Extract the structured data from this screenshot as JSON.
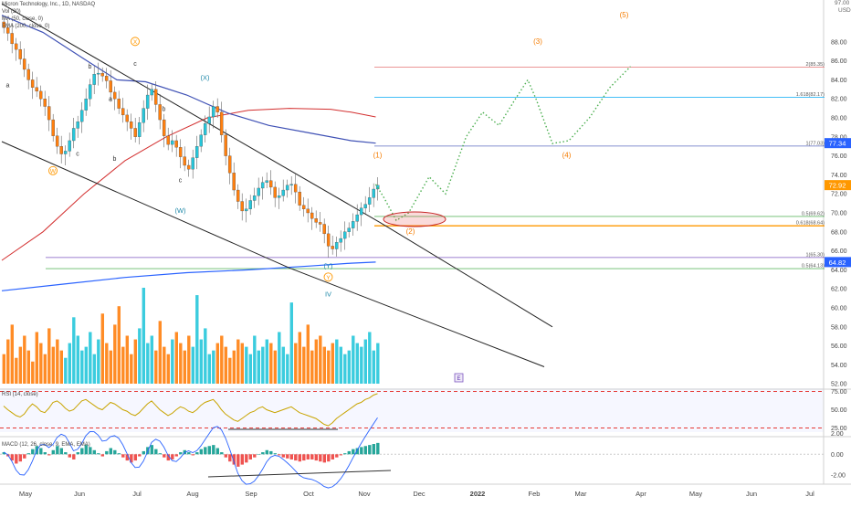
{
  "header": {
    "symbol_line": "Micron Technology, Inc., 1D, NASDAQ",
    "volume_line": "Vol (20)",
    "ma_line": "MA (50, close, 0)",
    "ema_line": "EMA (200, close, 0)",
    "rsi_line": "RSI (14, close)",
    "macd_line": "MACD (12, 26, close, 9, EMA, EMA)"
  },
  "colors": {
    "up": "#26c6da",
    "down": "#ff7f0e",
    "ma50": "#3f51b5",
    "ma_red": "#d32f2f",
    "ema200": "#2962ff",
    "rsi": "#c8a400",
    "rsi_band_top": "#e53935",
    "projection": "#4caf50",
    "label": "#ff9800",
    "price_badge": "#ff9800",
    "blue_badge": "#2962ff",
    "wave_cyan": "#1e88a8"
  },
  "price_axis": {
    "unit": "USD",
    "ticks": [
      "88.00",
      "86.00",
      "84.00",
      "82.00",
      "80.00",
      "78.00",
      "76.00",
      "74.00",
      "72.00",
      "70.00",
      "68.00",
      "66.00",
      "64.00",
      "62.00",
      "60.00",
      "58.00",
      "56.00",
      "54.00",
      "52.00"
    ],
    "last_price": "72.92",
    "ema_badge": "77.34",
    "ema200_badge": "64.82"
  },
  "rsi_axis": {
    "ticks": [
      "75.00",
      "50.00",
      "25.00"
    ]
  },
  "macd_axis": {
    "ticks": [
      "2.00",
      "0.00",
      "-2.00"
    ]
  },
  "x_axis": {
    "labels": [
      "May",
      "Jun",
      "Jul",
      "Aug",
      "Sep",
      "Oct",
      "Nov",
      "Dec",
      "2022",
      "Feb",
      "Mar",
      "Apr",
      "May",
      "Jun",
      "Jul"
    ]
  },
  "fib_levels": [
    {
      "label": "2(85.35)",
      "price": 85.35,
      "color": "#e57373"
    },
    {
      "label": "1.618(82.17)",
      "price": 82.17,
      "color": "#29b6f6"
    },
    {
      "label": "1(77.03)",
      "price": 77.03,
      "color": "#5c6bc0"
    },
    {
      "label": "0.5(69.62)",
      "price": 69.62,
      "color": "#66bb6a"
    },
    {
      "label": "0.618(68.64)",
      "price": 68.64,
      "color": "#ff9800"
    },
    {
      "label": "1(65.30)",
      "price": 65.3,
      "color": "#7e57c2"
    },
    {
      "label": "0.5(64.13)",
      "price": 64.13,
      "color": "#66bb6a"
    }
  ],
  "wave_labels": [
    {
      "text": "(X)",
      "style": "circle",
      "day": 32,
      "price": 87.8
    },
    {
      "text": "a",
      "style": "plain",
      "day": 1,
      "price": 83.2
    },
    {
      "text": "b",
      "style": "plain",
      "day": 21,
      "price": 85.2
    },
    {
      "text": "c",
      "style": "plain",
      "day": 18,
      "price": 76.0
    },
    {
      "text": "W",
      "style": "circle",
      "day": 12,
      "price": 74.2
    },
    {
      "text": "a",
      "style": "plain",
      "day": 26,
      "price": 81.8
    },
    {
      "text": "c",
      "style": "plain",
      "day": 32,
      "price": 85.5
    },
    {
      "text": "b",
      "style": "plain",
      "day": 27,
      "price": 75.5
    },
    {
      "text": "b",
      "style": "plain",
      "day": 39,
      "price": 80.7
    },
    {
      "text": "c",
      "style": "plain",
      "day": 43,
      "price": 73.2
    },
    {
      "text": "(X)",
      "style": "cyan",
      "day": 49,
      "price": 84.0
    },
    {
      "text": "(W)",
      "style": "cyan",
      "day": 43,
      "price": 70.0
    },
    {
      "text": "(Y)",
      "style": "cyan",
      "day": 79,
      "price": 64.2
    },
    {
      "text": "Y",
      "style": "circle",
      "day": 79,
      "price": 63.0
    },
    {
      "text": "IV",
      "style": "cyan",
      "day": 79,
      "price": 61.2
    },
    {
      "text": "(1)",
      "style": "plain-orange",
      "day": 91,
      "price": 75.8
    },
    {
      "text": "(2)",
      "style": "plain-orange",
      "day": 99,
      "price": 67.8
    },
    {
      "text": "(3)",
      "style": "plain-orange",
      "day": 130,
      "price": 87.8
    },
    {
      "text": "(4)",
      "style": "plain-orange",
      "day": 137,
      "price": 75.8
    },
    {
      "text": "(5)",
      "style": "plain-orange",
      "day": 151,
      "price": 90.6
    }
  ],
  "chart_data": {
    "type": "line",
    "title": "Micron Technology, Inc., 1D, NASDAQ",
    "ylabel": "USD",
    "ylim": [
      51,
      91
    ],
    "x_unit": "trading days from first visible bar",
    "candles_close": [
      89.5,
      88.9,
      87.8,
      87.2,
      86.2,
      85.1,
      84.0,
      83.2,
      82.8,
      82.0,
      81.2,
      79.8,
      78.1,
      77.0,
      76.2,
      76.5,
      77.6,
      78.9,
      79.6,
      80.8,
      82.0,
      83.5,
      84.6,
      84.7,
      84.4,
      83.9,
      82.7,
      82.0,
      81.0,
      80.3,
      79.6,
      78.9,
      78.0,
      79.5,
      81.0,
      82.4,
      83.0,
      81.4,
      79.8,
      78.1,
      77.2,
      77.6,
      76.9,
      75.9,
      75.0,
      74.6,
      75.8,
      77.0,
      78.2,
      79.4,
      80.1,
      81.2,
      80.6,
      78.2,
      76.0,
      74.2,
      72.4,
      71.2,
      70.2,
      70.4,
      71.3,
      71.8,
      72.6,
      73.2,
      73.4,
      72.7,
      71.6,
      71.8,
      72.4,
      72.9,
      73.0,
      72.2,
      70.8,
      70.4,
      70.0,
      69.4,
      69.0,
      68.8,
      67.8,
      66.5,
      66.2,
      66.9,
      67.3,
      68.0,
      68.4,
      69.1,
      69.8,
      70.5,
      70.9,
      71.6,
      72.5,
      72.9
    ],
    "projection": [
      [
        91,
        73.0
      ],
      [
        93,
        71.6
      ],
      [
        96,
        69.2
      ],
      [
        99,
        70.0
      ],
      [
        104,
        73.8
      ],
      [
        108,
        72.0
      ],
      [
        113,
        78.0
      ],
      [
        117,
        80.6
      ],
      [
        121,
        79.2
      ],
      [
        125,
        82.0
      ],
      [
        128,
        84.0
      ],
      [
        130,
        82.0
      ],
      [
        134,
        77.3
      ],
      [
        138,
        77.6
      ],
      [
        143,
        80.0
      ],
      [
        148,
        83.2
      ],
      [
        153,
        85.4
      ]
    ],
    "ma50": [
      [
        0,
        90.8
      ],
      [
        10,
        89.0
      ],
      [
        20,
        86.2
      ],
      [
        28,
        84.0
      ],
      [
        35,
        83.8
      ],
      [
        45,
        82.4
      ],
      [
        55,
        80.5
      ],
      [
        65,
        79.2
      ],
      [
        75,
        78.4
      ],
      [
        85,
        77.6
      ],
      [
        91,
        77.34
      ]
    ],
    "ma_red": [
      [
        0,
        65.0
      ],
      [
        10,
        68.0
      ],
      [
        20,
        72.0
      ],
      [
        30,
        75.5
      ],
      [
        40,
        78.0
      ],
      [
        50,
        80.0
      ],
      [
        60,
        80.8
      ],
      [
        70,
        81.0
      ],
      [
        80,
        80.9
      ],
      [
        85,
        80.6
      ],
      [
        91,
        80.1
      ]
    ],
    "ema200": [
      [
        0,
        61.8
      ],
      [
        15,
        62.5
      ],
      [
        30,
        63.2
      ],
      [
        45,
        63.7
      ],
      [
        60,
        64.0
      ],
      [
        75,
        64.4
      ],
      [
        85,
        64.7
      ],
      [
        91,
        64.82
      ]
    ],
    "trendline_upper": [
      [
        0,
        92.0
      ],
      [
        60,
        77.0
      ],
      [
        92,
        69.0
      ],
      [
        134,
        58.0
      ]
    ],
    "trendline_lower": [
      [
        0,
        77.5
      ],
      [
        70,
        64.2
      ],
      [
        132,
        53.8
      ]
    ],
    "volume": [
      8,
      12,
      16,
      7,
      10,
      13,
      9,
      6,
      14,
      11,
      8,
      15,
      10,
      12,
      9,
      7,
      11,
      18,
      13,
      9,
      10,
      14,
      8,
      12,
      19,
      11,
      9,
      16,
      21,
      10,
      13,
      8,
      12,
      15,
      26,
      11,
      13,
      9,
      17,
      10,
      8,
      12,
      14,
      11,
      9,
      13,
      10,
      24,
      12,
      15,
      8,
      9,
      11,
      13,
      10,
      7,
      9,
      12,
      11,
      10,
      8,
      13,
      9,
      10,
      12,
      11,
      9,
      14,
      10,
      8,
      22,
      11,
      14,
      10,
      16,
      9,
      12,
      13,
      10,
      9,
      11,
      12,
      10,
      8,
      9,
      13,
      11,
      10,
      12,
      14,
      9,
      11
    ],
    "rsi": [
      55,
      50,
      46,
      42,
      40,
      44,
      52,
      58,
      54,
      48,
      46,
      52,
      60,
      62,
      58,
      52,
      48,
      50,
      56,
      62,
      64,
      60,
      56,
      52,
      50,
      55,
      60,
      58,
      54,
      50,
      48,
      44,
      42,
      46,
      52,
      58,
      62,
      56,
      50,
      46,
      42,
      45,
      50,
      54,
      52,
      48,
      46,
      50,
      56,
      60,
      62,
      64,
      58,
      50,
      44,
      40,
      36,
      34,
      38,
      42,
      46,
      48,
      52,
      54,
      50,
      48,
      46,
      48,
      50,
      52,
      54,
      50,
      46,
      44,
      42,
      40,
      38,
      34,
      30,
      28,
      32,
      38,
      42,
      46,
      50,
      54,
      58,
      60,
      64,
      66,
      70,
      72
    ],
    "macd_hist": [
      0.2,
      -0.2,
      -0.6,
      -0.9,
      -0.7,
      -0.4,
      0.1,
      0.5,
      0.8,
      0.6,
      0.2,
      -0.1,
      0.4,
      0.8,
      0.6,
      0.2,
      -0.3,
      -0.5,
      0.2,
      0.6,
      0.9,
      0.7,
      0.4,
      0.1,
      -0.2,
      0.3,
      0.6,
      0.4,
      0.1,
      -0.3,
      -0.6,
      -0.8,
      -0.6,
      -0.2,
      0.3,
      0.7,
      0.9,
      0.5,
      0.1,
      -0.3,
      -0.6,
      -0.5,
      -0.2,
      0.2,
      0.4,
      0.2,
      -0.1,
      0.2,
      0.5,
      0.7,
      0.8,
      0.9,
      0.6,
      0.2,
      -0.3,
      -0.7,
      -1.0,
      -1.2,
      -1.0,
      -0.8,
      -0.5,
      -0.3,
      0.0,
      0.2,
      0.4,
      0.3,
      0.1,
      -0.1,
      -0.3,
      -0.4,
      -0.5,
      -0.6,
      -0.7,
      -0.6,
      -0.5,
      -0.5,
      -0.6,
      -0.7,
      -0.8,
      -0.7,
      -0.5,
      -0.3,
      -0.1,
      0.1,
      0.3,
      0.5,
      0.6,
      0.7,
      0.8,
      0.9,
      1.0,
      1.1
    ]
  }
}
